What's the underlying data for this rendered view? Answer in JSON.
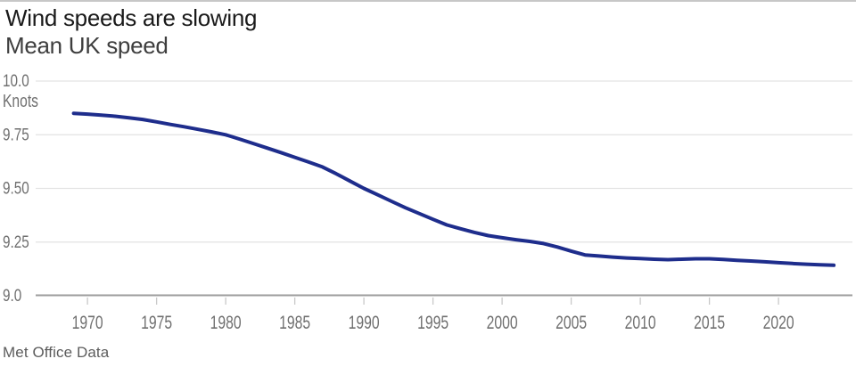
{
  "chart_data": {
    "type": "line",
    "title": "Wind speeds are slowing",
    "subtitle": "Mean UK speed",
    "unit_label": "Knots",
    "ylabel": "Knots",
    "source": "Met Office Data",
    "x": [
      1969,
      1970,
      1971,
      1972,
      1973,
      1974,
      1975,
      1976,
      1977,
      1978,
      1979,
      1980,
      1981,
      1982,
      1983,
      1984,
      1985,
      1986,
      1987,
      1988,
      1989,
      1990,
      1991,
      1992,
      1993,
      1994,
      1995,
      1996,
      1997,
      1998,
      1999,
      2000,
      2001,
      2002,
      2003,
      2004,
      2005,
      2006,
      2007,
      2008,
      2009,
      2010,
      2011,
      2012,
      2013,
      2014,
      2015,
      2016,
      2017,
      2018,
      2019,
      2020,
      2021,
      2022,
      2023,
      2024
    ],
    "series": [
      {
        "name": "Mean UK wind speed",
        "values": [
          9.85,
          9.846,
          9.841,
          9.836,
          9.829,
          9.821,
          9.81,
          9.798,
          9.787,
          9.775,
          9.763,
          9.75,
          9.73,
          9.709,
          9.688,
          9.667,
          9.645,
          9.623,
          9.6,
          9.568,
          9.534,
          9.5,
          9.47,
          9.44,
          9.41,
          9.383,
          9.356,
          9.33,
          9.312,
          9.295,
          9.28,
          9.27,
          9.261,
          9.253,
          9.243,
          9.227,
          9.208,
          9.19,
          9.185,
          9.18,
          9.176,
          9.173,
          9.17,
          9.168,
          9.17,
          9.172,
          9.172,
          9.169,
          9.165,
          9.162,
          9.158,
          9.154,
          9.15,
          9.147,
          9.144,
          9.142
        ]
      }
    ],
    "xticks": [
      1970,
      1975,
      1980,
      1985,
      1990,
      1995,
      2000,
      2005,
      2010,
      2015,
      2020
    ],
    "yticks": [
      9.0,
      9.25,
      9.5,
      9.75,
      10.0
    ],
    "ytick_labels": [
      "9.0",
      "9.25",
      "9.50",
      "9.75",
      "10.0"
    ],
    "xlim": [
      1966.25,
      2025.35
    ],
    "ylim": [
      9.0,
      10.0
    ],
    "grid": "horizontal",
    "legend": "none",
    "colors": {
      "line": "#1e2d8c",
      "grid": "#e3e3e3",
      "axis": "#9c9c9c",
      "tick": "#c9c9c9",
      "label": "#707070"
    }
  }
}
